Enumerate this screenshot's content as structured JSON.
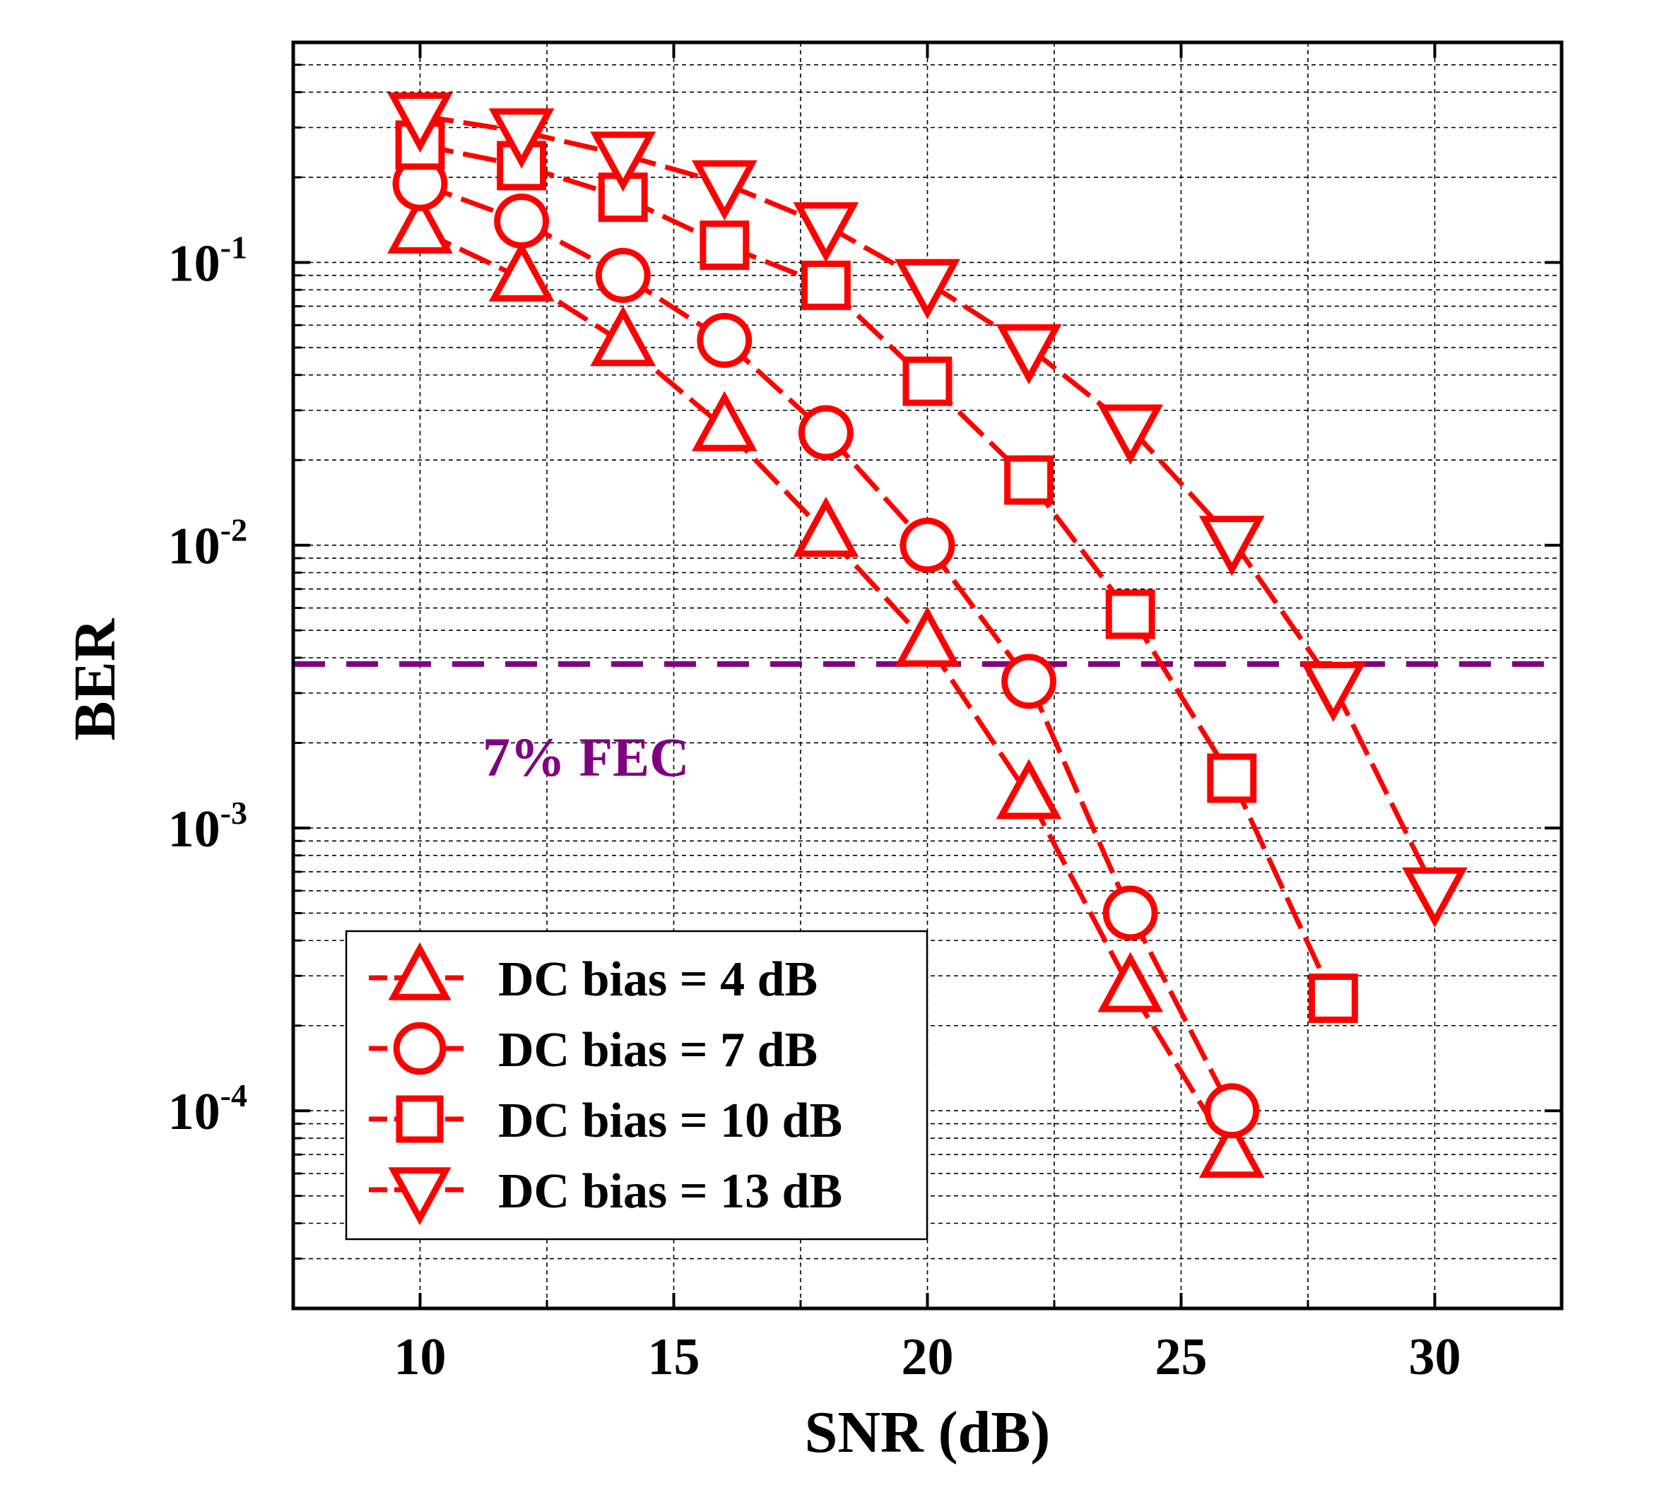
{
  "chart_data": {
    "type": "line",
    "title": "",
    "xlabel": "SNR (dB)",
    "ylabel": "BER",
    "xlim": [
      7.5,
      32.5
    ],
    "ylim": [
      2e-05,
      0.6
    ],
    "yscale": "log",
    "xticks": [
      10,
      15,
      20,
      25,
      30
    ],
    "xtick_labels": [
      "10",
      "15",
      "20",
      "25",
      "30"
    ],
    "yticks": [
      0.1,
      0.01,
      0.001,
      0.0001
    ],
    "ytick_labels": [
      {
        "base": "10",
        "exp": "-1"
      },
      {
        "base": "10",
        "exp": "-2"
      },
      {
        "base": "10",
        "exp": "-3"
      },
      {
        "base": "10",
        "exp": "-4"
      }
    ],
    "grid": true,
    "legend_position": "bottom-left",
    "threshold": {
      "label": "7% FEC",
      "value": 0.0038,
      "color": "#800080"
    },
    "series": [
      {
        "name": "DC bias = 4 dB",
        "marker": "triangle-up",
        "color": "#ff0000",
        "x": [
          10,
          12,
          14,
          16,
          18,
          20,
          22,
          24,
          26
        ],
        "y": [
          0.13,
          0.088,
          0.052,
          0.026,
          0.011,
          0.0045,
          0.0013,
          0.00027,
          7e-05
        ]
      },
      {
        "name": "DC bias = 7 dB",
        "marker": "circle",
        "color": "#ff0000",
        "x": [
          10,
          12,
          14,
          16,
          18,
          20,
          22,
          24,
          26
        ],
        "y": [
          0.19,
          0.14,
          0.09,
          0.053,
          0.025,
          0.01,
          0.0033,
          0.0005,
          0.0001
        ]
      },
      {
        "name": "DC bias = 10 dB",
        "marker": "square",
        "color": "#ff0000",
        "x": [
          10,
          12,
          14,
          16,
          18,
          20,
          22,
          24,
          26,
          28
        ],
        "y": [
          0.26,
          0.22,
          0.17,
          0.115,
          0.083,
          0.038,
          0.017,
          0.0057,
          0.0015,
          0.00025
        ]
      },
      {
        "name": "DC bias = 13 dB",
        "marker": "triangle-down",
        "color": "#ff0000",
        "x": [
          10,
          12,
          14,
          16,
          18,
          20,
          22,
          24,
          26,
          28,
          30
        ],
        "y": [
          0.33,
          0.29,
          0.24,
          0.19,
          0.135,
          0.085,
          0.05,
          0.026,
          0.0105,
          0.0032,
          0.0006
        ]
      }
    ]
  }
}
